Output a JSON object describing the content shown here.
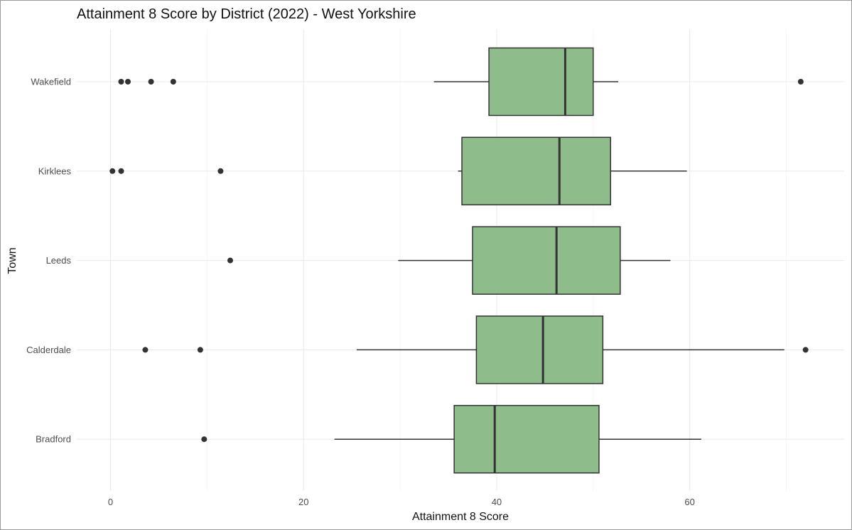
{
  "chart_data": {
    "type": "boxplot",
    "title": "Attainment 8 Score by District (2022) - West Yorkshire",
    "xlabel": "Attainment 8 Score",
    "ylabel": "Town",
    "xlim": [
      -3.5,
      76
    ],
    "x_ticks": [
      0,
      20,
      40,
      60
    ],
    "grid": true,
    "orientation": "horizontal",
    "box_color": "#8FBC8B",
    "outline_color": "#333333",
    "categories": [
      "Wakefield",
      "Kirklees",
      "Leeds",
      "Calderdale",
      "Bradford"
    ],
    "series": [
      {
        "category": "Wakefield",
        "whisker_low": 33.5,
        "q1": 39.2,
        "median": 47.1,
        "q3": 50.0,
        "whisker_high": 52.6,
        "outliers": [
          1.1,
          1.8,
          4.2,
          6.5,
          71.5
        ]
      },
      {
        "category": "Kirklees",
        "whisker_low": 36.0,
        "q1": 36.4,
        "median": 46.5,
        "q3": 51.8,
        "whisker_high": 59.7,
        "outliers": [
          0.2,
          1.1,
          11.4
        ]
      },
      {
        "category": "Leeds",
        "whisker_low": 29.8,
        "q1": 37.5,
        "median": 46.2,
        "q3": 52.8,
        "whisker_high": 58.0,
        "outliers": [
          12.4
        ]
      },
      {
        "category": "Calderdale",
        "whisker_low": 25.5,
        "q1": 37.9,
        "median": 44.8,
        "q3": 51.0,
        "whisker_high": 69.8,
        "outliers": [
          3.6,
          9.3,
          72.0
        ]
      },
      {
        "category": "Bradford",
        "whisker_low": 23.2,
        "q1": 35.6,
        "median": 39.8,
        "q3": 50.6,
        "whisker_high": 61.2,
        "outliers": [
          9.7
        ]
      }
    ]
  }
}
